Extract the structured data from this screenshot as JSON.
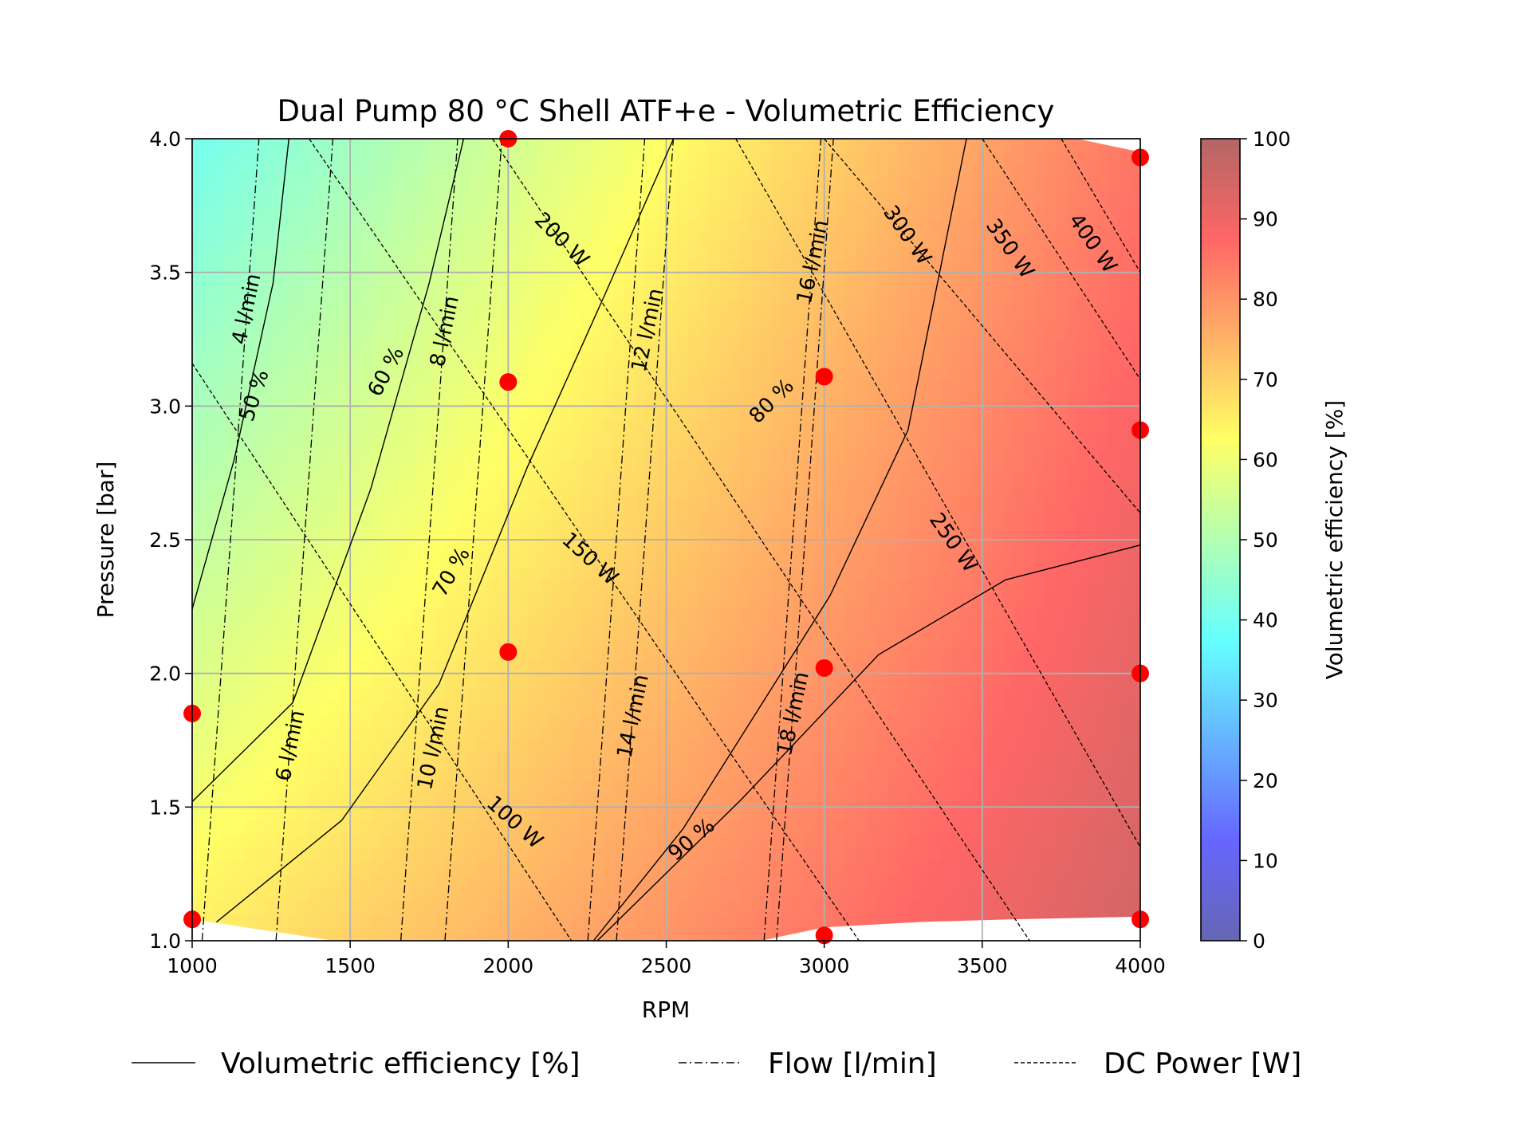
{
  "chart_data": {
    "type": "heatmap",
    "title": "Dual Pump 80 °C Shell ATF+e - Volumetric Efficiency",
    "xlabel": "RPM",
    "ylabel": "Pressure [bar]",
    "xlim": [
      1000,
      4000
    ],
    "ylim": [
      1.0,
      4.0
    ],
    "xticks": [
      "1000",
      "1500",
      "2000",
      "2500",
      "3000",
      "3500",
      "4000"
    ],
    "yticks": [
      "1.0",
      "1.5",
      "2.0",
      "2.5",
      "3.0",
      "3.5",
      "4.0"
    ],
    "grid": true,
    "colorbar": {
      "label": "Volumetric efficiency [%]",
      "range": [
        0,
        100
      ],
      "ticks": [
        "0",
        "10",
        "20",
        "30",
        "40",
        "50",
        "60",
        "70",
        "80",
        "90",
        "100"
      ]
    },
    "efficiency_surface": {
      "corners": {
        "rpm1000_p1": 65,
        "rpm1000_p4": 40,
        "rpm4000_p1": 95,
        "rpm4000_p4": 85
      }
    },
    "measured_points": [
      [
        1000,
        1.08
      ],
      [
        1000,
        1.85
      ],
      [
        2000,
        4.0
      ],
      [
        2000,
        3.09
      ],
      [
        2000,
        2.08
      ],
      [
        3000,
        3.11
      ],
      [
        3000,
        2.02
      ],
      [
        3000,
        1.02
      ],
      [
        4000,
        3.93
      ],
      [
        4000,
        2.91
      ],
      [
        4000,
        2.0
      ],
      [
        4000,
        1.08
      ]
    ],
    "efficiency_contours": [
      {
        "label": "50 %",
        "points": [
          [
            1000,
            2.24
          ],
          [
            1133,
            2.8
          ],
          [
            1256,
            3.46
          ],
          [
            1306,
            4.0
          ]
        ],
        "label_at": [
          1195,
          3.04
        ],
        "angle": -72
      },
      {
        "label": "60 %",
        "points": [
          [
            1000,
            1.52
          ],
          [
            1318,
            1.89
          ],
          [
            1565,
            2.69
          ],
          [
            1750,
            3.46
          ],
          [
            1859,
            4.0
          ]
        ],
        "label_at": [
          1612,
          3.13
        ],
        "angle": -62
      },
      {
        "label": "70 %",
        "points": [
          [
            1077,
            1.07
          ],
          [
            1473,
            1.45
          ],
          [
            1781,
            1.96
          ],
          [
            2060,
            2.77
          ],
          [
            2307,
            3.42
          ],
          [
            2523,
            4.0
          ]
        ],
        "label_at": [
          1819,
          2.38
        ],
        "angle": -60
      },
      {
        "label": "80 %",
        "points": [
          [
            2270,
            1.0
          ],
          [
            2554,
            1.42
          ],
          [
            3018,
            2.29
          ],
          [
            3265,
            2.91
          ],
          [
            3450,
            4.0
          ]
        ],
        "label_at": [
          2832,
          3.02
        ],
        "angle": -45
      },
      {
        "label": "90 %",
        "points": [
          [
            2282,
            1.0
          ],
          [
            2739,
            1.53
          ],
          [
            3172,
            2.07
          ],
          [
            3574,
            2.35
          ],
          [
            4000,
            2.48
          ]
        ],
        "label_at": [
          2579,
          1.38
        ],
        "angle": -40
      }
    ],
    "flow_contours": [
      {
        "label": "4 l/min",
        "label_at": [
          1170,
          3.31
        ]
      },
      {
        "label": "6 l/min",
        "label_at": [
          1309,
          1.73
        ]
      },
      {
        "label": "8 l/min",
        "label_at": [
          1797,
          3.28
        ]
      },
      {
        "label": "10 l/min",
        "label_at": [
          1837,
          1.62
        ]
      },
      {
        "label": "12 l/min",
        "label_at": [
          2393,
          3.35
        ]
      },
      {
        "label": "14 l/min",
        "label_at": [
          2393,
          1.84
        ]
      },
      {
        "label": "16 l/min",
        "label_at": [
          2962,
          3.54
        ]
      },
      {
        "label": "18 l/min",
        "label_at": [
          2900,
          1.85
        ]
      }
    ],
    "power_contours": [
      {
        "label": "100 W",
        "points": [
          [
            1000,
            3.16
          ],
          [
            2200,
            1.0
          ]
        ],
        "label_at": [
          1951,
          1.51
        ],
        "angle": 42
      },
      {
        "label": "150 W",
        "points": [
          [
            1370,
            4.0
          ],
          [
            3110,
            1.0
          ]
        ],
        "label_at": [
          2260,
          2.43
        ],
        "angle": 42
      },
      {
        "label": "200 W",
        "points": [
          [
            1950,
            4.0
          ],
          [
            3650,
            1.0
          ]
        ],
        "label_at": [
          2322,
          3.48
        ],
        "angle": 45
      },
      {
        "label": "250 W",
        "points": [
          [
            2720,
            4.0
          ],
          [
            4000,
            1.35
          ]
        ],
        "label_at": [
          3410,
          2.49
        ],
        "angle": 55
      },
      {
        "label": "300 W",
        "points": [
          [
            3000,
            4.0
          ],
          [
            4000,
            2.6
          ]
        ],
        "label_at": [
          3264,
          3.64
        ],
        "angle": 55
      },
      {
        "label": "350 W",
        "points": [
          [
            3500,
            4.0
          ],
          [
            4000,
            3.1
          ]
        ],
        "label_at": [
          3589,
          3.59
        ],
        "angle": 55
      },
      {
        "label": "400 W",
        "points": [
          [
            3750,
            4.0
          ],
          [
            4000,
            3.5
          ]
        ],
        "label_at": [
          3851,
          3.61
        ],
        "angle": 55
      }
    ],
    "legend": {
      "placement": "bottom",
      "entries": [
        {
          "label": "Volumetric efficiency [%]",
          "style": "solid"
        },
        {
          "label": "Flow [l/min]",
          "style": "dashdot"
        },
        {
          "label": "DC Power [W]",
          "style": "dashed"
        }
      ]
    },
    "colors": {
      "point": "#ff0000",
      "grid": "#b0b0b0",
      "line": "#000000"
    }
  }
}
